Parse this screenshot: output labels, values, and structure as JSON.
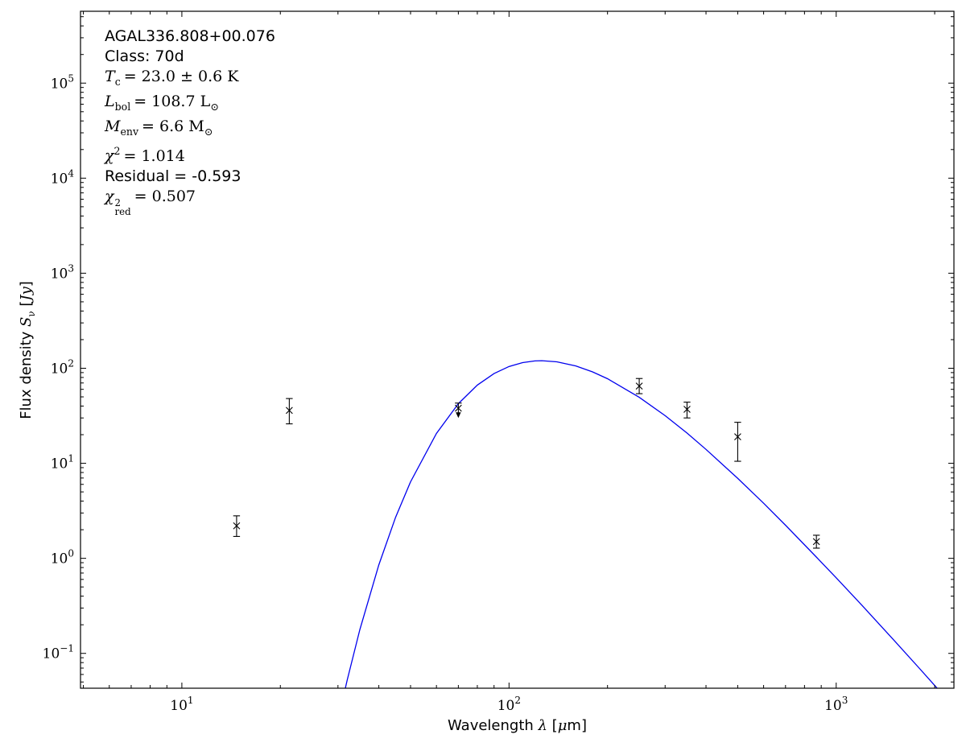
{
  "figure": {
    "background": "#ffffff",
    "annotation": {
      "source_name": "AGAL336.808+00.076",
      "class_line": "Class: 70d",
      "tc": {
        "base": "T",
        "sub": "c",
        "value": "= 23.0 ± 0.6 K"
      },
      "lbol": {
        "base": "L",
        "sub": "bol",
        "value": "= 108.7 ",
        "unit_base": "L",
        "unit_sub": "⊙"
      },
      "menv": {
        "base": "M",
        "sub": "env",
        "value": "= 6.6 ",
        "unit_base": "M",
        "unit_sub": "⊙"
      },
      "chi2": {
        "base": "χ",
        "sup": "2",
        "value": "= 1.014"
      },
      "residual": "Residual = -0.593",
      "chi2red": {
        "base": "χ",
        "sup": "2",
        "sub": "red",
        "value": "= 0.507"
      }
    },
    "xlabel": {
      "prefix": "Wavelength ",
      "symbol": "λ",
      "open": " [",
      "mu": "μ",
      "close": "m]"
    },
    "ylabel": {
      "prefix": "Flux density ",
      "symbol": "S",
      "sub": "ν",
      "open": " [",
      "unit": "Jy",
      "close": "]"
    }
  },
  "chart_data": {
    "type": "scatter",
    "title": "",
    "xlabel": "Wavelength λ [μm]",
    "ylabel": "Flux density Sν [Jy]",
    "x_scale": "log",
    "y_scale": "log",
    "xlim": [
      4.9,
      2290
    ],
    "ylim": [
      0.043,
      570000
    ],
    "x_major_ticks": [
      10,
      100,
      1000
    ],
    "y_major_ticks": [
      0.1,
      1,
      10,
      100,
      1000,
      10000,
      100000
    ],
    "grid": false,
    "legend": "none",
    "marker": {
      "shape": "x",
      "color": "#000000"
    },
    "points": [
      {
        "wavelength_um": 14.7,
        "flux_jy": 2.2,
        "flux_hi": 2.8,
        "flux_lo": 1.7
      },
      {
        "wavelength_um": 21.3,
        "flux_jy": 36,
        "flux_hi": 48,
        "flux_lo": 26
      },
      {
        "wavelength_um": 70,
        "flux_jy": 38,
        "flux_hi": 43,
        "flux_lo": 30,
        "arrow": "down"
      },
      {
        "wavelength_um": 250,
        "flux_jy": 65,
        "flux_hi": 78,
        "flux_lo": 54
      },
      {
        "wavelength_um": 350,
        "flux_jy": 37,
        "flux_hi": 44,
        "flux_lo": 30
      },
      {
        "wavelength_um": 500,
        "flux_jy": 19,
        "flux_hi": 27,
        "flux_lo": 10.5
      },
      {
        "wavelength_um": 870,
        "flux_jy": 1.5,
        "flux_hi": 1.75,
        "flux_lo": 1.28
      }
    ],
    "model_curve": {
      "name": "greybody-fit",
      "color": "#0000ee",
      "T_K": 23.0,
      "peak_um": 126,
      "peak_jy": 120,
      "samples": [
        [
          30,
          0.0196
        ],
        [
          32,
          0.052
        ],
        [
          35,
          0.178
        ],
        [
          40,
          0.854
        ],
        [
          45,
          2.7
        ],
        [
          50,
          6.38
        ],
        [
          60,
          20.6
        ],
        [
          70,
          42.4
        ],
        [
          80,
          66.5
        ],
        [
          90,
          88.0
        ],
        [
          100,
          104.3
        ],
        [
          110,
          114.5
        ],
        [
          120,
          119.4
        ],
        [
          126,
          120.0
        ],
        [
          140,
          116.8
        ],
        [
          160,
          105.7
        ],
        [
          180,
          91.5
        ],
        [
          200,
          77.6
        ],
        [
          250,
          49.5
        ],
        [
          300,
          31.7
        ],
        [
          350,
          20.8
        ],
        [
          400,
          14.0
        ],
        [
          500,
          6.95
        ],
        [
          600,
          3.8
        ],
        [
          700,
          2.23
        ],
        [
          870,
          1.03
        ],
        [
          1000,
          0.624
        ],
        [
          1200,
          0.319
        ],
        [
          1500,
          0.138
        ],
        [
          1800,
          0.069
        ],
        [
          2000,
          0.046
        ],
        [
          2290,
          0.027
        ]
      ]
    }
  }
}
